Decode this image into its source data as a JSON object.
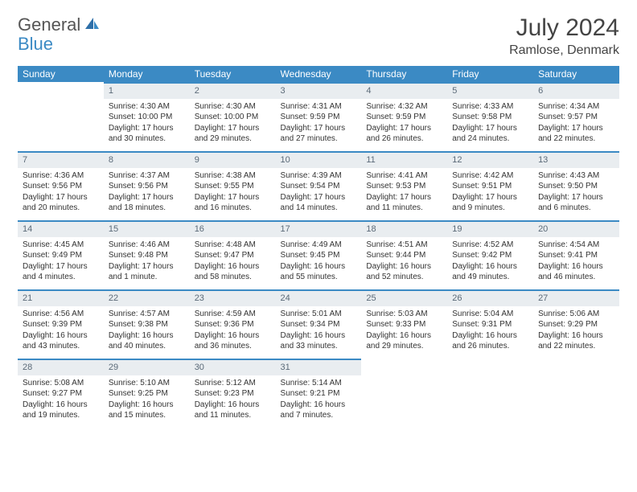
{
  "brand": {
    "part1": "General",
    "part2": "Blue"
  },
  "title": "July 2024",
  "location": "Ramlose, Denmark",
  "colors": {
    "header_bg": "#3b8ac4",
    "header_text": "#ffffff",
    "daynum_bg": "#e9edf0",
    "daynum_text": "#5b6a78",
    "rule": "#3b8ac4",
    "body_text": "#333333",
    "page_bg": "#ffffff"
  },
  "day_headers": [
    "Sunday",
    "Monday",
    "Tuesday",
    "Wednesday",
    "Thursday",
    "Friday",
    "Saturday"
  ],
  "weeks": [
    [
      null,
      {
        "n": "1",
        "sr": "Sunrise: 4:30 AM",
        "ss": "Sunset: 10:00 PM",
        "dl1": "Daylight: 17 hours",
        "dl2": "and 30 minutes."
      },
      {
        "n": "2",
        "sr": "Sunrise: 4:30 AM",
        "ss": "Sunset: 10:00 PM",
        "dl1": "Daylight: 17 hours",
        "dl2": "and 29 minutes."
      },
      {
        "n": "3",
        "sr": "Sunrise: 4:31 AM",
        "ss": "Sunset: 9:59 PM",
        "dl1": "Daylight: 17 hours",
        "dl2": "and 27 minutes."
      },
      {
        "n": "4",
        "sr": "Sunrise: 4:32 AM",
        "ss": "Sunset: 9:59 PM",
        "dl1": "Daylight: 17 hours",
        "dl2": "and 26 minutes."
      },
      {
        "n": "5",
        "sr": "Sunrise: 4:33 AM",
        "ss": "Sunset: 9:58 PM",
        "dl1": "Daylight: 17 hours",
        "dl2": "and 24 minutes."
      },
      {
        "n": "6",
        "sr": "Sunrise: 4:34 AM",
        "ss": "Sunset: 9:57 PM",
        "dl1": "Daylight: 17 hours",
        "dl2": "and 22 minutes."
      }
    ],
    [
      {
        "n": "7",
        "sr": "Sunrise: 4:36 AM",
        "ss": "Sunset: 9:56 PM",
        "dl1": "Daylight: 17 hours",
        "dl2": "and 20 minutes."
      },
      {
        "n": "8",
        "sr": "Sunrise: 4:37 AM",
        "ss": "Sunset: 9:56 PM",
        "dl1": "Daylight: 17 hours",
        "dl2": "and 18 minutes."
      },
      {
        "n": "9",
        "sr": "Sunrise: 4:38 AM",
        "ss": "Sunset: 9:55 PM",
        "dl1": "Daylight: 17 hours",
        "dl2": "and 16 minutes."
      },
      {
        "n": "10",
        "sr": "Sunrise: 4:39 AM",
        "ss": "Sunset: 9:54 PM",
        "dl1": "Daylight: 17 hours",
        "dl2": "and 14 minutes."
      },
      {
        "n": "11",
        "sr": "Sunrise: 4:41 AM",
        "ss": "Sunset: 9:53 PM",
        "dl1": "Daylight: 17 hours",
        "dl2": "and 11 minutes."
      },
      {
        "n": "12",
        "sr": "Sunrise: 4:42 AM",
        "ss": "Sunset: 9:51 PM",
        "dl1": "Daylight: 17 hours",
        "dl2": "and 9 minutes."
      },
      {
        "n": "13",
        "sr": "Sunrise: 4:43 AM",
        "ss": "Sunset: 9:50 PM",
        "dl1": "Daylight: 17 hours",
        "dl2": "and 6 minutes."
      }
    ],
    [
      {
        "n": "14",
        "sr": "Sunrise: 4:45 AM",
        "ss": "Sunset: 9:49 PM",
        "dl1": "Daylight: 17 hours",
        "dl2": "and 4 minutes."
      },
      {
        "n": "15",
        "sr": "Sunrise: 4:46 AM",
        "ss": "Sunset: 9:48 PM",
        "dl1": "Daylight: 17 hours",
        "dl2": "and 1 minute."
      },
      {
        "n": "16",
        "sr": "Sunrise: 4:48 AM",
        "ss": "Sunset: 9:47 PM",
        "dl1": "Daylight: 16 hours",
        "dl2": "and 58 minutes."
      },
      {
        "n": "17",
        "sr": "Sunrise: 4:49 AM",
        "ss": "Sunset: 9:45 PM",
        "dl1": "Daylight: 16 hours",
        "dl2": "and 55 minutes."
      },
      {
        "n": "18",
        "sr": "Sunrise: 4:51 AM",
        "ss": "Sunset: 9:44 PM",
        "dl1": "Daylight: 16 hours",
        "dl2": "and 52 minutes."
      },
      {
        "n": "19",
        "sr": "Sunrise: 4:52 AM",
        "ss": "Sunset: 9:42 PM",
        "dl1": "Daylight: 16 hours",
        "dl2": "and 49 minutes."
      },
      {
        "n": "20",
        "sr": "Sunrise: 4:54 AM",
        "ss": "Sunset: 9:41 PM",
        "dl1": "Daylight: 16 hours",
        "dl2": "and 46 minutes."
      }
    ],
    [
      {
        "n": "21",
        "sr": "Sunrise: 4:56 AM",
        "ss": "Sunset: 9:39 PM",
        "dl1": "Daylight: 16 hours",
        "dl2": "and 43 minutes."
      },
      {
        "n": "22",
        "sr": "Sunrise: 4:57 AM",
        "ss": "Sunset: 9:38 PM",
        "dl1": "Daylight: 16 hours",
        "dl2": "and 40 minutes."
      },
      {
        "n": "23",
        "sr": "Sunrise: 4:59 AM",
        "ss": "Sunset: 9:36 PM",
        "dl1": "Daylight: 16 hours",
        "dl2": "and 36 minutes."
      },
      {
        "n": "24",
        "sr": "Sunrise: 5:01 AM",
        "ss": "Sunset: 9:34 PM",
        "dl1": "Daylight: 16 hours",
        "dl2": "and 33 minutes."
      },
      {
        "n": "25",
        "sr": "Sunrise: 5:03 AM",
        "ss": "Sunset: 9:33 PM",
        "dl1": "Daylight: 16 hours",
        "dl2": "and 29 minutes."
      },
      {
        "n": "26",
        "sr": "Sunrise: 5:04 AM",
        "ss": "Sunset: 9:31 PM",
        "dl1": "Daylight: 16 hours",
        "dl2": "and 26 minutes."
      },
      {
        "n": "27",
        "sr": "Sunrise: 5:06 AM",
        "ss": "Sunset: 9:29 PM",
        "dl1": "Daylight: 16 hours",
        "dl2": "and 22 minutes."
      }
    ],
    [
      {
        "n": "28",
        "sr": "Sunrise: 5:08 AM",
        "ss": "Sunset: 9:27 PM",
        "dl1": "Daylight: 16 hours",
        "dl2": "and 19 minutes."
      },
      {
        "n": "29",
        "sr": "Sunrise: 5:10 AM",
        "ss": "Sunset: 9:25 PM",
        "dl1": "Daylight: 16 hours",
        "dl2": "and 15 minutes."
      },
      {
        "n": "30",
        "sr": "Sunrise: 5:12 AM",
        "ss": "Sunset: 9:23 PM",
        "dl1": "Daylight: 16 hours",
        "dl2": "and 11 minutes."
      },
      {
        "n": "31",
        "sr": "Sunrise: 5:14 AM",
        "ss": "Sunset: 9:21 PM",
        "dl1": "Daylight: 16 hours",
        "dl2": "and 7 minutes."
      },
      null,
      null,
      null
    ]
  ]
}
